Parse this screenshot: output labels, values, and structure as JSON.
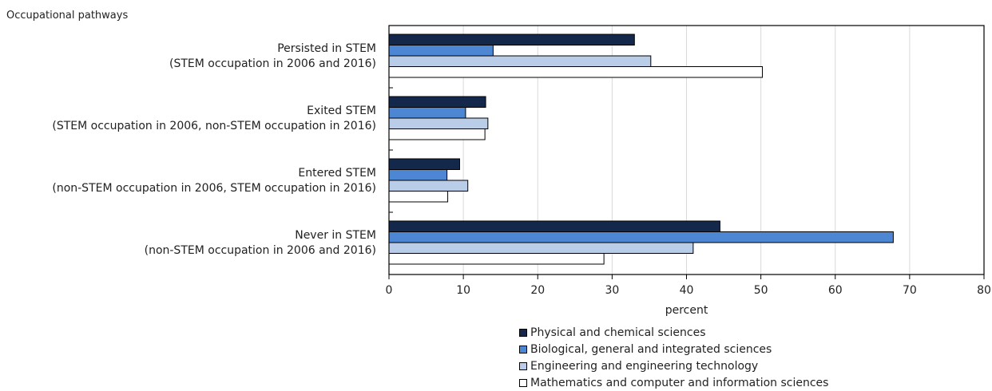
{
  "chart_data": {
    "type": "bar",
    "orientation": "horizontal",
    "ylabel": "Occupational pathways",
    "xlabel": "percent",
    "xlim": [
      0,
      80
    ],
    "xticks": [
      0,
      10,
      20,
      30,
      40,
      50,
      60,
      70,
      80
    ],
    "grid": "vertical",
    "legend_position": "bottom",
    "categories": [
      {
        "line1": "Persisted in STEM",
        "line2": "(STEM occupation in 2006 and 2016)"
      },
      {
        "line1": "Exited STEM",
        "line2": "(STEM occupation in 2006, non-STEM occupation in 2016)"
      },
      {
        "line1": "Entered STEM",
        "line2": "(non-STEM occupation in 2006, STEM occupation in 2016)"
      },
      {
        "line1": "Never in STEM",
        "line2": "(non-STEM occupation in 2006 and 2016)"
      }
    ],
    "series": [
      {
        "name": "Physical and chemical sciences",
        "color": "#13284a",
        "values": [
          33.0,
          13.0,
          9.5,
          44.5
        ]
      },
      {
        "name": "Biological, general and integrated sciences",
        "color": "#4d87d4",
        "values": [
          14.0,
          10.3,
          7.8,
          67.8
        ]
      },
      {
        "name": "Engineering and engineering technology",
        "color": "#b9cde8",
        "values": [
          35.2,
          13.3,
          10.6,
          40.9
        ]
      },
      {
        "name": "Mathematics and computer and information sciences",
        "color": "#ffffff",
        "values": [
          50.2,
          12.9,
          7.9,
          28.9
        ]
      }
    ]
  }
}
